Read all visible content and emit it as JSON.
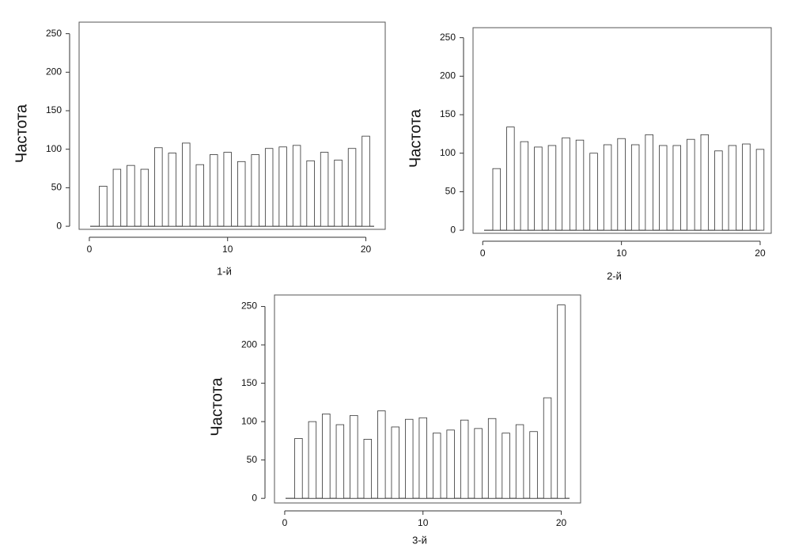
{
  "chart_data": [
    {
      "type": "bar",
      "xlabel": "1-й",
      "ylabel": "Частота",
      "x": [
        1,
        2,
        3,
        4,
        5,
        6,
        7,
        8,
        9,
        10,
        11,
        12,
        13,
        14,
        15,
        16,
        17,
        18,
        19,
        20
      ],
      "values": [
        52,
        74,
        79,
        74,
        102,
        95,
        108,
        80,
        93,
        96,
        84,
        93,
        101,
        103,
        105,
        85,
        96,
        86,
        101,
        117
      ],
      "color": "#ffffff",
      "xlim": [
        -0.74,
        21.4
      ],
      "ylim": [
        -4,
        265
      ],
      "xticks": [
        0,
        10,
        20
      ],
      "yticks": [
        0,
        50,
        100,
        150,
        200,
        250
      ]
    },
    {
      "type": "bar",
      "xlabel": "2-й",
      "ylabel": "Частота",
      "x": [
        1,
        2,
        3,
        4,
        5,
        6,
        7,
        8,
        9,
        10,
        11,
        12,
        13,
        14,
        15,
        16,
        17,
        18,
        19,
        20
      ],
      "values": [
        80,
        134,
        115,
        108,
        110,
        120,
        117,
        100,
        111,
        119,
        111,
        124,
        110,
        110,
        118,
        124,
        103,
        110,
        112,
        105
      ],
      "color": "#ffffff",
      "xlim": [
        -0.7,
        20.8
      ],
      "ylim": [
        -4,
        263
      ],
      "xticks": [
        0,
        10,
        20
      ],
      "yticks": [
        0,
        50,
        100,
        150,
        200,
        250
      ]
    },
    {
      "type": "bar",
      "xlabel": "3-й",
      "ylabel": "Частота",
      "x": [
        1,
        2,
        3,
        4,
        5,
        6,
        7,
        8,
        9,
        10,
        11,
        12,
        13,
        14,
        15,
        16,
        17,
        18,
        19,
        20
      ],
      "values": [
        78,
        100,
        110,
        96,
        108,
        77,
        114,
        93,
        103,
        105,
        85,
        89,
        102,
        91,
        104,
        85,
        96,
        87,
        131,
        252
      ],
      "color": "#ffffff",
      "xlim": [
        -0.74,
        21.4
      ],
      "ylim": [
        -6,
        265
      ],
      "xticks": [
        0,
        10,
        20
      ],
      "yticks": [
        0,
        50,
        100,
        150,
        200,
        250
      ]
    }
  ]
}
